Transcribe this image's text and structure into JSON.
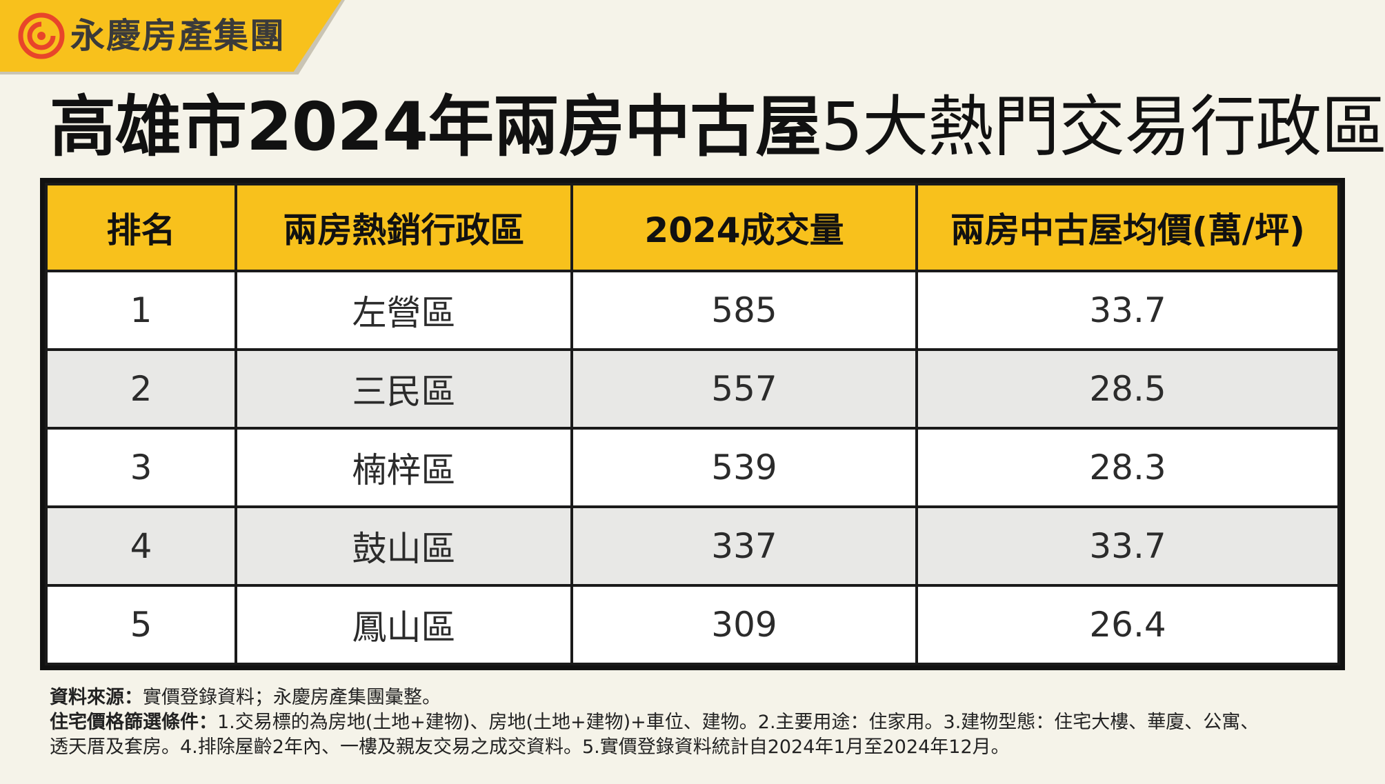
{
  "brand": {
    "logo_icon": "swirl-logo-icon",
    "name": "永慶房產集團",
    "color": "#f8c11c"
  },
  "title": {
    "bold_part": "高雄市2024年兩房中古屋",
    "light_part": "5大熱門交易行政區"
  },
  "table": {
    "headers": [
      "排名",
      "兩房熱銷行政區",
      "2024成交量",
      "兩房中古屋均價(萬/坪)"
    ],
    "rows": [
      {
        "rank": "1",
        "district": "左營區",
        "volume": "585",
        "price": "33.7"
      },
      {
        "rank": "2",
        "district": "三民區",
        "volume": "557",
        "price": "28.5"
      },
      {
        "rank": "3",
        "district": "楠梓區",
        "volume": "539",
        "price": "28.3"
      },
      {
        "rank": "4",
        "district": "鼓山區",
        "volume": "337",
        "price": "33.7"
      },
      {
        "rank": "5",
        "district": "鳳山區",
        "volume": "309",
        "price": "26.4"
      }
    ]
  },
  "notes": {
    "source_label": "資料來源：",
    "source_text": "實價登錄資料；永慶房產集團彙整。",
    "criteria_label": "住宅價格篩選條件：",
    "criteria_text_1": "1.交易標的為房地(土地+建物)、房地(土地+建物)+車位、建物。2.主要用途：住家用。3.建物型態：住宅大樓、華廈、公寓、",
    "criteria_text_2": "透天厝及套房。4.排除屋齡2年內、一樓及親友交易之成交資料。5.實價登錄資料統計自2024年1月至2024年12月。"
  }
}
